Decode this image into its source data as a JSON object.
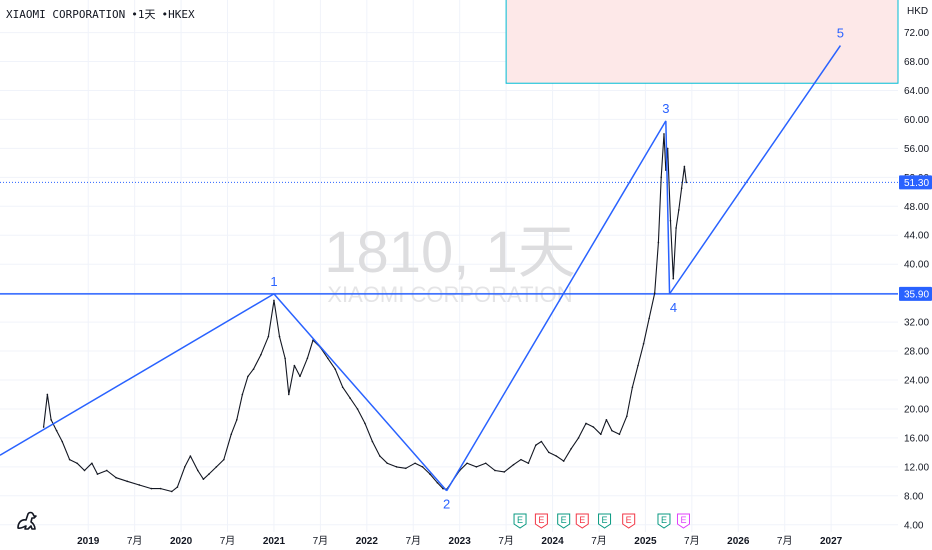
{
  "header": {
    "name": "XIAOMI CORPORATION",
    "interval": "1天",
    "exchange": "HKEX",
    "separator": "•"
  },
  "watermark": {
    "symbol": "1810, 1天",
    "name": "XIAOMI CORPORATION"
  },
  "currency": "HKD",
  "price_labels": {
    "current": "51.30",
    "level": "35.90"
  },
  "chart_data": {
    "type": "line",
    "y_ticks": [
      4,
      8,
      12,
      16,
      20,
      24,
      28,
      32,
      36,
      40,
      44,
      48,
      52,
      56,
      60,
      64,
      68,
      72
    ],
    "y_tick_labels": [
      "4.00",
      "8.00",
      "12.00",
      "16.00",
      "20.00",
      "24.00",
      "28.00",
      "32.00",
      "36.00",
      "40.00",
      "44.00",
      "48.00",
      "52.00",
      "56.00",
      "60.00",
      "64.00",
      "68.00",
      "72.00"
    ],
    "ylim": [
      3,
      76.5
    ],
    "x_ticks": [
      {
        "label": "2019",
        "t": 2019.0,
        "bold": true
      },
      {
        "label": "7月",
        "t": 2019.5,
        "bold": false
      },
      {
        "label": "2020",
        "t": 2020.0,
        "bold": true
      },
      {
        "label": "7月",
        "t": 2020.5,
        "bold": false
      },
      {
        "label": "2021",
        "t": 2021.0,
        "bold": true
      },
      {
        "label": "7月",
        "t": 2021.5,
        "bold": false
      },
      {
        "label": "2022",
        "t": 2022.0,
        "bold": true
      },
      {
        "label": "7月",
        "t": 2022.5,
        "bold": false
      },
      {
        "label": "2023",
        "t": 2023.0,
        "bold": true
      },
      {
        "label": "7月",
        "t": 2023.5,
        "bold": false
      },
      {
        "label": "2024",
        "t": 2024.0,
        "bold": true
      },
      {
        "label": "7月",
        "t": 2024.5,
        "bold": false
      },
      {
        "label": "2025",
        "t": 2025.0,
        "bold": true
      },
      {
        "label": "7月",
        "t": 2025.5,
        "bold": false
      },
      {
        "label": "2026",
        "t": 2026.0,
        "bold": true
      },
      {
        "label": "7月",
        "t": 2026.5,
        "bold": false
      },
      {
        "label": "2027",
        "t": 2027.0,
        "bold": true
      }
    ],
    "xlim": [
      2018.05,
      2027.72
    ],
    "price_series": {
      "name": "",
      "points": [
        [
          2018.52,
          17.5
        ],
        [
          2018.56,
          22.0
        ],
        [
          2018.6,
          18.5
        ],
        [
          2018.66,
          17.0
        ],
        [
          2018.72,
          15.5
        ],
        [
          2018.8,
          13.0
        ],
        [
          2018.88,
          12.5
        ],
        [
          2018.96,
          11.5
        ],
        [
          2019.04,
          12.5
        ],
        [
          2019.1,
          11.0
        ],
        [
          2019.2,
          11.5
        ],
        [
          2019.3,
          10.5
        ],
        [
          2019.42,
          10.0
        ],
        [
          2019.55,
          9.5
        ],
        [
          2019.68,
          9.0
        ],
        [
          2019.78,
          9.0
        ],
        [
          2019.9,
          8.6
        ],
        [
          2019.96,
          9.2
        ],
        [
          2020.04,
          12.0
        ],
        [
          2020.1,
          13.5
        ],
        [
          2020.18,
          11.5
        ],
        [
          2020.24,
          10.3
        ],
        [
          2020.3,
          11.0
        ],
        [
          2020.38,
          12.0
        ],
        [
          2020.46,
          13.0
        ],
        [
          2020.54,
          16.5
        ],
        [
          2020.6,
          18.5
        ],
        [
          2020.66,
          22.0
        ],
        [
          2020.72,
          24.5
        ],
        [
          2020.78,
          25.5
        ],
        [
          2020.86,
          27.5
        ],
        [
          2020.94,
          30.0
        ],
        [
          2021.0,
          35.0
        ],
        [
          2021.06,
          30.0
        ],
        [
          2021.12,
          27.0
        ],
        [
          2021.16,
          22.0
        ],
        [
          2021.22,
          26.0
        ],
        [
          2021.28,
          24.5
        ],
        [
          2021.36,
          27.0
        ],
        [
          2021.42,
          29.5
        ],
        [
          2021.5,
          28.5
        ],
        [
          2021.58,
          27.0
        ],
        [
          2021.66,
          25.5
        ],
        [
          2021.74,
          23.0
        ],
        [
          2021.82,
          21.5
        ],
        [
          2021.9,
          20.0
        ],
        [
          2021.98,
          18.0
        ],
        [
          2022.06,
          15.5
        ],
        [
          2022.14,
          13.5
        ],
        [
          2022.22,
          12.5
        ],
        [
          2022.32,
          12.0
        ],
        [
          2022.42,
          11.8
        ],
        [
          2022.52,
          12.5
        ],
        [
          2022.6,
          12.0
        ],
        [
          2022.68,
          11.0
        ],
        [
          2022.76,
          9.8
        ],
        [
          2022.82,
          9.0
        ],
        [
          2022.86,
          8.9
        ],
        [
          2022.92,
          10.0
        ],
        [
          2023.0,
          11.5
        ],
        [
          2023.08,
          12.5
        ],
        [
          2023.18,
          12.0
        ],
        [
          2023.28,
          12.5
        ],
        [
          2023.38,
          11.5
        ],
        [
          2023.48,
          11.3
        ],
        [
          2023.58,
          12.3
        ],
        [
          2023.66,
          13.0
        ],
        [
          2023.74,
          12.5
        ],
        [
          2023.82,
          15.0
        ],
        [
          2023.88,
          15.5
        ],
        [
          2023.96,
          14.0
        ],
        [
          2024.04,
          13.5
        ],
        [
          2024.12,
          12.8
        ],
        [
          2024.2,
          14.5
        ],
        [
          2024.28,
          16.0
        ],
        [
          2024.36,
          18.0
        ],
        [
          2024.44,
          17.5
        ],
        [
          2024.52,
          16.5
        ],
        [
          2024.58,
          18.5
        ],
        [
          2024.64,
          17.0
        ],
        [
          2024.72,
          16.5
        ],
        [
          2024.8,
          19.0
        ],
        [
          2024.86,
          23.0
        ],
        [
          2024.92,
          26.0
        ],
        [
          2024.98,
          29.0
        ],
        [
          2025.04,
          32.5
        ],
        [
          2025.1,
          36.0
        ],
        [
          2025.14,
          43.0
        ],
        [
          2025.17,
          52.0
        ],
        [
          2025.2,
          58.0
        ],
        [
          2025.22,
          53.0
        ],
        [
          2025.24,
          56.0
        ],
        [
          2025.27,
          46.0
        ],
        [
          2025.3,
          38.0
        ],
        [
          2025.33,
          45.0
        ],
        [
          2025.36,
          47.5
        ],
        [
          2025.39,
          50.5
        ],
        [
          2025.42,
          53.5
        ],
        [
          2025.44,
          51.3
        ]
      ]
    },
    "wave_labels": [
      "1",
      "2",
      "3",
      "4",
      "5"
    ],
    "wave_points": [
      {
        "label": "",
        "t": 2018.05,
        "v": 13.6
      },
      {
        "label": "1",
        "t": 2021.0,
        "v": 35.9
      },
      {
        "label": "2",
        "t": 2022.86,
        "v": 8.7
      },
      {
        "label": "3",
        "t": 2025.22,
        "v": 59.8
      },
      {
        "label": "4",
        "t": 2025.26,
        "v": 35.9
      },
      {
        "label": "5",
        "t": 2027.1,
        "v": 70.2
      }
    ],
    "horizontal_level": 35.9,
    "current_price": 51.3,
    "target_box": {
      "t0": 2023.5,
      "t1": 2027.72,
      "v0": 65.0,
      "v1": 80.0
    },
    "events": [
      {
        "label": "E",
        "t": 2023.65,
        "color": "#089981"
      },
      {
        "label": "E",
        "t": 2023.88,
        "color": "#f23645"
      },
      {
        "label": "E",
        "t": 2024.12,
        "color": "#089981"
      },
      {
        "label": "E",
        "t": 2024.32,
        "color": "#f23645"
      },
      {
        "label": "E",
        "t": 2024.56,
        "color": "#089981"
      },
      {
        "label": "E",
        "t": 2024.82,
        "color": "#f23645"
      },
      {
        "label": "E",
        "t": 2025.2,
        "color": "#089981"
      },
      {
        "label": "E",
        "t": 2025.41,
        "color": "#e040fb"
      }
    ]
  },
  "colors": {
    "accent": "#2962ff",
    "price_line": "#131722",
    "target_fill": "#fde8e8",
    "target_border": "#00bcd4",
    "grid": "#f0f3fa"
  },
  "icons": {
    "logo": "tradingview-dino-icon"
  }
}
